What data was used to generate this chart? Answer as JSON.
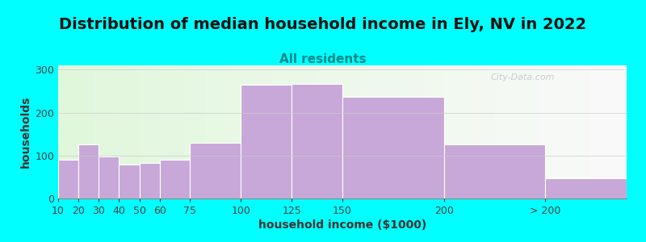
{
  "title": "Distribution of median household income in Ely, NV in 2022",
  "subtitle": "All residents",
  "xlabel": "household income ($1000)",
  "ylabel": "households",
  "bar_color": "#C8A8D8",
  "bar_edgecolor": "#ffffff",
  "background_color": "#00FFFF",
  "yticks": [
    0,
    100,
    200,
    300
  ],
  "ylim": [
    0,
    310
  ],
  "title_fontsize": 14,
  "subtitle_fontsize": 11,
  "axis_fontsize": 10,
  "tick_fontsize": 9,
  "watermark": "City-Data.com",
  "bin_edges": [
    10,
    20,
    30,
    40,
    50,
    60,
    75,
    100,
    125,
    150,
    200,
    250,
    290
  ],
  "bar_heights": [
    90,
    125,
    97,
    78,
    83,
    90,
    130,
    265,
    267,
    237,
    125,
    47
  ],
  "xtick_positions": [
    10,
    20,
    30,
    40,
    50,
    60,
    75,
    100,
    125,
    150,
    200,
    250
  ],
  "xtick_labels": [
    "10",
    "20",
    "30",
    "40",
    "50",
    "60",
    "75",
    "100",
    "125",
    "150",
    "200",
    "> 200"
  ]
}
